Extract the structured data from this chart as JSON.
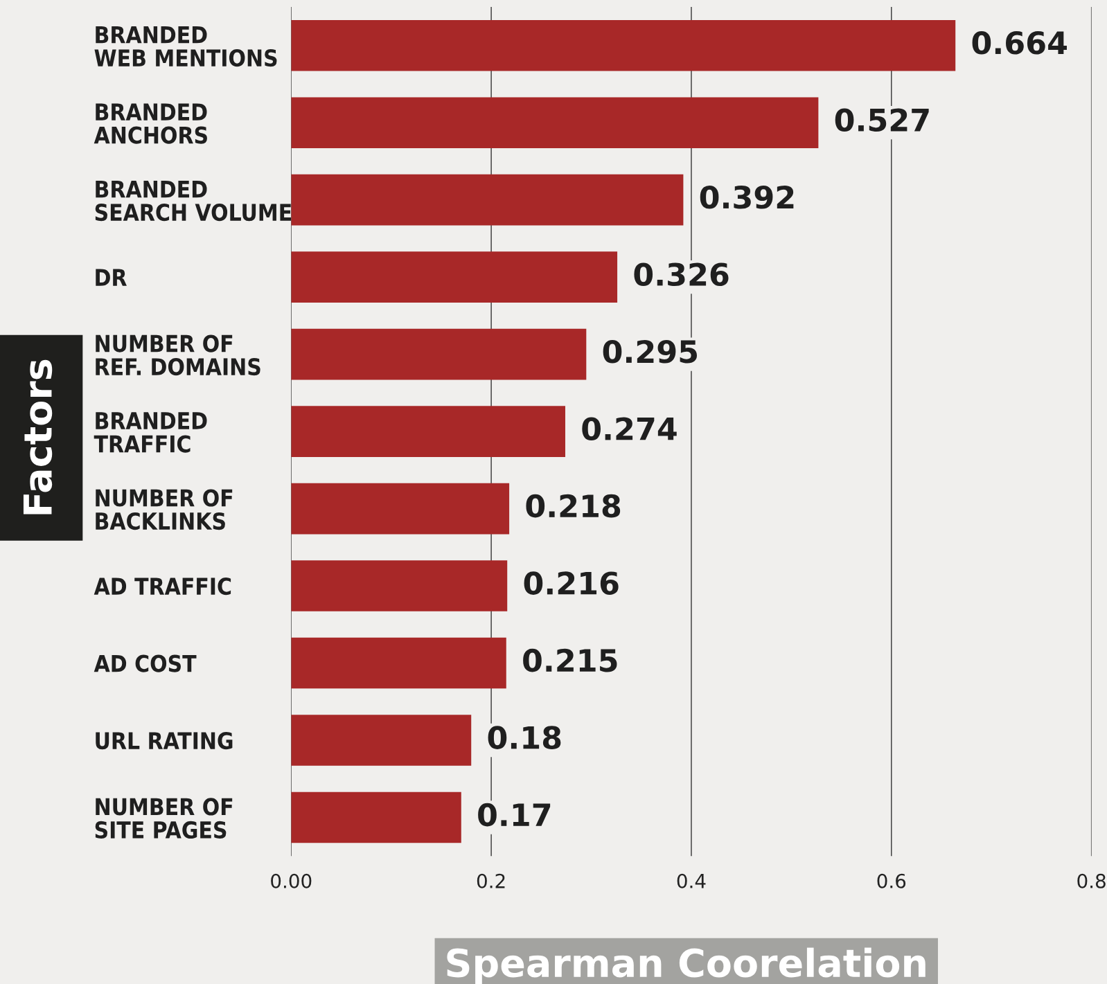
{
  "chart_data": {
    "type": "bar",
    "orientation": "horizontal",
    "xlabel": "Spearman Coorelation",
    "ylabel": "Factors",
    "categories": [
      "BRANDED\nWEB MENTIONS",
      "BRANDED\nANCHORS",
      "BRANDED\nSEARCH VOLUME",
      "DR",
      "NUMBER OF\nREF. DOMAINS",
      "BRANDED\nTRAFFIC",
      "NUMBER OF\nBACKLINKS",
      "AD TRAFFIC",
      "AD COST",
      "URL RATING",
      "NUMBER OF\nSITE PAGES"
    ],
    "values": [
      0.664,
      0.527,
      0.392,
      0.326,
      0.295,
      0.274,
      0.218,
      0.216,
      0.215,
      0.18,
      0.17
    ],
    "color": "#a82828",
    "data_labels": true,
    "xlim": [
      0,
      0.8
    ],
    "xticks": [
      {
        "value": 0,
        "label": "0.00"
      },
      0.2,
      0.4,
      0.6,
      0.8
    ],
    "grid": "x",
    "legend": false
  }
}
